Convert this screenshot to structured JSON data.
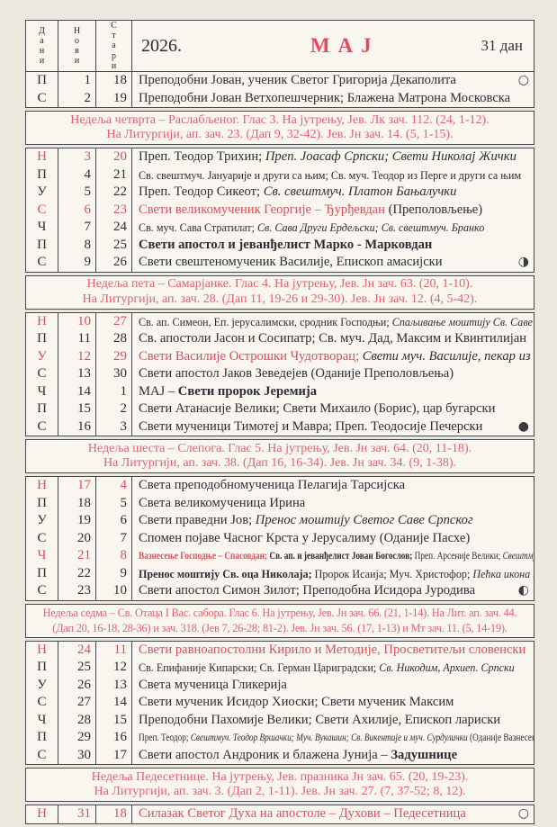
{
  "colors": {
    "month_red": "#e64a5c",
    "accent_red": "#d94f5e",
    "separator_pink": "#e2606f",
    "paper": "#f8f6ef",
    "page_background": "#ebe8e0",
    "ink": "#2d2d33"
  },
  "header": {
    "col_days": "Дани",
    "col_new": "Нови",
    "col_old": "Стари",
    "year": "2026.",
    "month": "МАЈ",
    "days_count": "31 дан"
  },
  "moon_icons": {
    "full": "○",
    "right_half": "◑",
    "new": "●",
    "left_half": "◐"
  },
  "sections": [
    {
      "type": "days",
      "rows": [
        {
          "d": "П",
          "n": "1",
          "o": "18",
          "red": false,
          "size": "",
          "moon": "○",
          "seg": [
            [
              "r",
              "Преподобни Јован, ученик Светог Григорија Декаполита"
            ]
          ]
        },
        {
          "d": "С",
          "n": "2",
          "o": "19",
          "red": false,
          "size": "",
          "moon": "",
          "seg": [
            [
              "r",
              "Преподобни Јован Ветхопешчерник; Блажена Матрона Московска"
            ]
          ]
        }
      ]
    },
    {
      "type": "week",
      "size": "",
      "lines": [
        "Недеља четврта – Раслабљеног. Глас 3. На јутрењу, Јев. Лк зач. 112. (24, 1-12).",
        "На Литургији, ап. зач. 23. (Дап 9, 32-42). Јев. Јн зач. 14. (5, 1-15)."
      ]
    },
    {
      "type": "days",
      "rows": [
        {
          "d": "Н",
          "n": "3",
          "o": "20",
          "red": true,
          "size": "",
          "moon": "",
          "seg": [
            [
              "r",
              "Преп. Теодор Трихин; "
            ],
            [
              "si",
              "Преп. Јоасаф Српски; Свети Николај Жички"
            ]
          ]
        },
        {
          "d": "П",
          "n": "4",
          "o": "21",
          "red": false,
          "size": "s",
          "moon": "",
          "seg": [
            [
              "r",
              "Св. свештмуч. Јануарије и други са њим; Св. муч. Теодор из Перге и други са њим"
            ]
          ]
        },
        {
          "d": "У",
          "n": "5",
          "o": "22",
          "red": false,
          "size": "",
          "moon": "",
          "seg": [
            [
              "r",
              "Преп. Теодор Сикеот; "
            ],
            [
              "si",
              "Св. свештмуч. Платон Бањалучки"
            ]
          ]
        },
        {
          "d": "С",
          "n": "6",
          "o": "23",
          "red": true,
          "size": "",
          "moon": "",
          "seg": [
            [
              "sr",
              "Свети великомученик Георгије – Ђурђевдан "
            ],
            [
              "r",
              "(Преполовљење)"
            ]
          ]
        },
        {
          "d": "Ч",
          "n": "7",
          "o": "24",
          "red": false,
          "size": "s",
          "moon": "",
          "seg": [
            [
              "r",
              "Св. муч. Сава Стратилат; "
            ],
            [
              "si",
              "Св. Сава Други Ердељски; Св. свештмуч. Бранко"
            ]
          ]
        },
        {
          "d": "П",
          "n": "8",
          "o": "25",
          "red": false,
          "size": "",
          "moon": "",
          "seg": [
            [
              "sb",
              "Свети апостол и јеванђелист Марко - Марковдан"
            ]
          ]
        },
        {
          "d": "С",
          "n": "9",
          "o": "26",
          "red": false,
          "size": "",
          "moon": "◑",
          "seg": [
            [
              "r",
              "Свети свештеномученик Василије, Епископ амасијски"
            ]
          ]
        }
      ]
    },
    {
      "type": "week",
      "size": "",
      "lines": [
        "Недеља пета – Самарјанке. Глас 4. На јутрењу, Јев. Јн зач. 63. (20, 1-10).",
        "На Литургији, ап. зач. 28. (Дап 11, 19-26 и 29-30). Јев. Јн зач. 12. (4, 5-42)."
      ]
    },
    {
      "type": "days",
      "rows": [
        {
          "d": "Н",
          "n": "10",
          "o": "27",
          "red": true,
          "size": "s",
          "moon": "",
          "seg": [
            [
              "r",
              "Св. ап. Симеон, Еп. јерусалимски, сродник Господњи; "
            ],
            [
              "si",
              "Спаљивање моштију Св. Саве на Врачару"
            ]
          ]
        },
        {
          "d": "П",
          "n": "11",
          "o": "28",
          "red": false,
          "size": "",
          "moon": "",
          "seg": [
            [
              "r",
              "Св. апостоли Јасон и Сосипатр; Св. муч. Дад, Максим и Квинтилијан"
            ]
          ]
        },
        {
          "d": "У",
          "n": "12",
          "o": "29",
          "red": true,
          "size": "",
          "moon": "",
          "seg": [
            [
              "sr",
              "Свети Василије Острошки Чудотворац; "
            ],
            [
              "si",
              "Свети муч. Василије, пекар из Пећи"
            ]
          ]
        },
        {
          "d": "С",
          "n": "13",
          "o": "30",
          "red": false,
          "size": "",
          "moon": "",
          "seg": [
            [
              "r",
              "Свети апостол Јаков Зеведејев (Оданије Преполовљења)"
            ]
          ]
        },
        {
          "d": "Ч",
          "n": "14",
          "o": "1",
          "red": false,
          "size": "",
          "moon": "",
          "seg": [
            [
              "r",
              "МАЈ – "
            ],
            [
              "sb",
              "Свети пророк Јеремија"
            ]
          ]
        },
        {
          "d": "П",
          "n": "15",
          "o": "2",
          "red": false,
          "size": "",
          "moon": "",
          "seg": [
            [
              "r",
              "Свети Атанасије Велики; Свети Михаило (Борис), цар бугарски"
            ]
          ]
        },
        {
          "d": "С",
          "n": "16",
          "o": "3",
          "red": false,
          "size": "",
          "moon": "●",
          "seg": [
            [
              "r",
              "Свети мученици Тимотеј и Мавра; Преп. Теодосије Печерски"
            ]
          ]
        }
      ]
    },
    {
      "type": "week",
      "size": "",
      "lines": [
        "Недеља шеста – Слепога. Глас 5. На јутрењу, Јев. Јн зач. 64. (20, 11-18).",
        "На Литургији, ап. зач. 38. (Дап 16, 16-34). Јев. Јн зач. 34. (9, 1-38)."
      ]
    },
    {
      "type": "days",
      "rows": [
        {
          "d": "Н",
          "n": "17",
          "o": "4",
          "red": true,
          "size": "",
          "moon": "",
          "seg": [
            [
              "r",
              "Света преподобномученица Пелагија Тарсијска"
            ]
          ]
        },
        {
          "d": "П",
          "n": "18",
          "o": "5",
          "red": false,
          "size": "",
          "moon": "",
          "seg": [
            [
              "r",
              "Света великомученица Ирина"
            ]
          ]
        },
        {
          "d": "У",
          "n": "19",
          "o": "6",
          "red": false,
          "size": "",
          "moon": "",
          "seg": [
            [
              "r",
              "Свети праведни Јов; "
            ],
            [
              "si",
              "Пренос моштију Светог Саве Српског"
            ]
          ]
        },
        {
          "d": "С",
          "n": "20",
          "o": "7",
          "red": false,
          "size": "",
          "moon": "",
          "seg": [
            [
              "r",
              "Спомен појаве Часног Крста у Јерусалиму (Оданије Пасхе)"
            ]
          ]
        },
        {
          "d": "Ч",
          "n": "21",
          "o": "8",
          "red": true,
          "size": "xs",
          "moon": "",
          "seg": [
            [
              "srb",
              "Вазнесење Господње – Спасовдан; "
            ],
            [
              "sb",
              "Св. ап. и јеванђелист Јован Богослов; "
            ],
            [
              "r",
              "Преп. Арсеније Велики; "
            ],
            [
              "si",
              "Свештмуч. Недељко Раховички"
            ]
          ]
        },
        {
          "d": "П",
          "n": "22",
          "o": "9",
          "red": false,
          "size": "s",
          "moon": "",
          "seg": [
            [
              "sb",
              "Пренос моштију Св. оца Николаја; "
            ],
            [
              "r",
              "Пророк Исаија; Муч. Христофор; "
            ],
            [
              "si",
              "Пећка икона Пресвете Богородице"
            ]
          ]
        },
        {
          "d": "С",
          "n": "23",
          "o": "10",
          "red": false,
          "size": "",
          "moon": "◐",
          "seg": [
            [
              "r",
              "Свети апостол Симон Зилот; Преподобна Исидора Јуродива"
            ]
          ]
        }
      ]
    },
    {
      "type": "week",
      "size": "s",
      "lines": [
        "Недеља седма – Св. Отаца I Вас. сабора. Глас 6. На јутрењу, Јев. Јн зач. 66. (21, 1-14). На Лит. ап. зач. 44.",
        "(Дап 20, 16-18, 28-36) и зач. 318. (Јев 7, 26-28; 81-2). Јев. Јн зач. 56. (17, 1-13) и Мт зач. 11. (5, 14-19)."
      ]
    },
    {
      "type": "days",
      "rows": [
        {
          "d": "Н",
          "n": "24",
          "o": "11",
          "red": true,
          "size": "",
          "moon": "",
          "seg": [
            [
              "sr",
              "Свети равноапостолни Кирило и Методије, Просветитељи словенски"
            ]
          ]
        },
        {
          "d": "П",
          "n": "25",
          "o": "12",
          "red": false,
          "size": "s",
          "moon": "",
          "seg": [
            [
              "r",
              "Св. Епифаније Кипарски; Св. Герман Цариградски; "
            ],
            [
              "si",
              "Св. Никодим, Архиеп. Српски"
            ]
          ]
        },
        {
          "d": "У",
          "n": "26",
          "o": "13",
          "red": false,
          "size": "",
          "moon": "",
          "seg": [
            [
              "r",
              "Света мученица Гликерија"
            ]
          ]
        },
        {
          "d": "С",
          "n": "27",
          "o": "14",
          "red": false,
          "size": "",
          "moon": "",
          "seg": [
            [
              "r",
              "Свети мученик Исидор Хиоски; Свети мученик Максим"
            ]
          ]
        },
        {
          "d": "Ч",
          "n": "28",
          "o": "15",
          "red": false,
          "size": "",
          "moon": "",
          "seg": [
            [
              "r",
              "Преподобни Пахомије Велики; Свети Ахилије, Епископ лариски"
            ]
          ]
        },
        {
          "d": "П",
          "n": "29",
          "o": "16",
          "red": false,
          "size": "xs",
          "moon": "",
          "seg": [
            [
              "r",
              "Преп. Теодор; "
            ],
            [
              "si",
              "Свештмуч. Теодор Вршачки; Муч. Вукашин; Св. Викентије и муч. Сурдулички "
            ],
            [
              "r",
              "(Оданије Вазнесења)"
            ]
          ]
        },
        {
          "d": "С",
          "n": "30",
          "o": "17",
          "red": false,
          "size": "",
          "moon": "",
          "seg": [
            [
              "r",
              "Свети апостол Андроник и блажена Јунија – "
            ],
            [
              "sb",
              "Задушнице"
            ]
          ]
        }
      ]
    },
    {
      "type": "week",
      "size": "",
      "lines": [
        "Недеља Педесетнице. На јутрењу, Јев. празника Јн зач. 65. (20, 19-23).",
        "На Литургији, ап. зач. 3. (Дап 2, 1-11). Јев. Јн зач. 27. (7, 37-52; 8, 12)."
      ]
    },
    {
      "type": "days",
      "rows": [
        {
          "d": "Н",
          "n": "31",
          "o": "18",
          "red": true,
          "size": "",
          "moon": "○",
          "seg": [
            [
              "sr",
              "Силазак Светог Духа на апостоле – Духови – Педесетница"
            ]
          ]
        }
      ]
    }
  ]
}
